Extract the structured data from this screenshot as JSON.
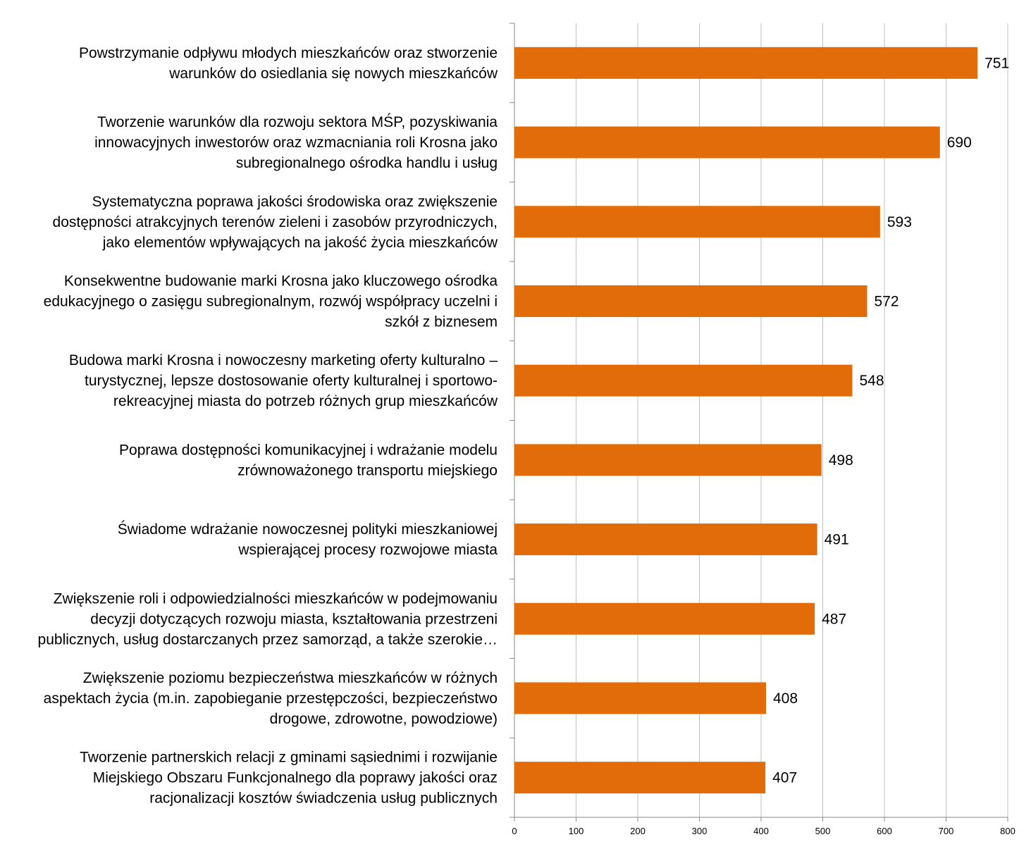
{
  "chart_data": {
    "type": "bar",
    "orientation": "horizontal",
    "title": "",
    "xlabel": "",
    "ylabel": "",
    "xlim": [
      0,
      800
    ],
    "x_ticks": [
      0,
      100,
      200,
      300,
      400,
      500,
      600,
      700,
      800
    ],
    "grid": true,
    "legend": "none",
    "bar_color": "#E36C0A",
    "categories": [
      {
        "lines": [
          "Powstrzymanie odpływu młodych mieszkańców oraz stworzenie",
          "warunków do osiedlania się nowych mieszkańców"
        ],
        "value": 751
      },
      {
        "lines": [
          "Tworzenie warunków dla rozwoju sektora MŚP,  pozyskiwania",
          "innowacyjnych inwestorów oraz wzmacniania roli Krosna jako",
          "subregionalnego ośrodka handlu i usług"
        ],
        "value": 690
      },
      {
        "lines": [
          "Systematyczna poprawa jakości środowiska oraz zwiększenie",
          "dostępności atrakcyjnych terenów zieleni i zasobów przyrodniczych,",
          "jako elementów wpływających na jakość życia mieszkańców"
        ],
        "value": 593
      },
      {
        "lines": [
          "Konsekwentne budowanie marki Krosna jako kluczowego ośrodka",
          "edukacyjnego o zasięgu subregionalnym, rozwój współpracy uczelni i",
          "szkół z biznesem"
        ],
        "value": 572
      },
      {
        "lines": [
          "Budowa marki Krosna i nowoczesny marketing oferty kulturalno –",
          "turystycznej, lepsze dostosowanie oferty kulturalnej i sportowo-",
          "rekreacyjnej miasta do potrzeb różnych grup mieszkańców"
        ],
        "value": 548
      },
      {
        "lines": [
          "Poprawa dostępności komunikacyjnej i wdrażanie modelu",
          "zrównoważonego transportu miejskiego"
        ],
        "value": 498
      },
      {
        "lines": [
          "Świadome wdrażanie nowoczesnej polityki mieszkaniowej",
          "wspierającej procesy rozwojowe miasta"
        ],
        "value": 491
      },
      {
        "lines": [
          "Zwiększenie roli i odpowiedzialności mieszkańców w podejmowaniu",
          "decyzji dotyczących rozwoju miasta, kształtowania przestrzeni",
          "publicznych, usług dostarczanych przez samorząd, a także szerokie…"
        ],
        "value": 487
      },
      {
        "lines": [
          "Zwiększenie poziomu bezpieczeństwa mieszkańców w różnych",
          "aspektach życia (m.in. zapobieganie przestępczości, bezpieczeństwo",
          "drogowe, zdrowotne, powodziowe)"
        ],
        "value": 408
      },
      {
        "lines": [
          "Tworzenie partnerskich relacji z gminami sąsiednimi i rozwijanie",
          "Miejskiego Obszaru Funkcjonalnego dla poprawy jakości oraz",
          "racjonalizacji kosztów świadczenia usług publicznych"
        ],
        "value": 407
      }
    ]
  }
}
